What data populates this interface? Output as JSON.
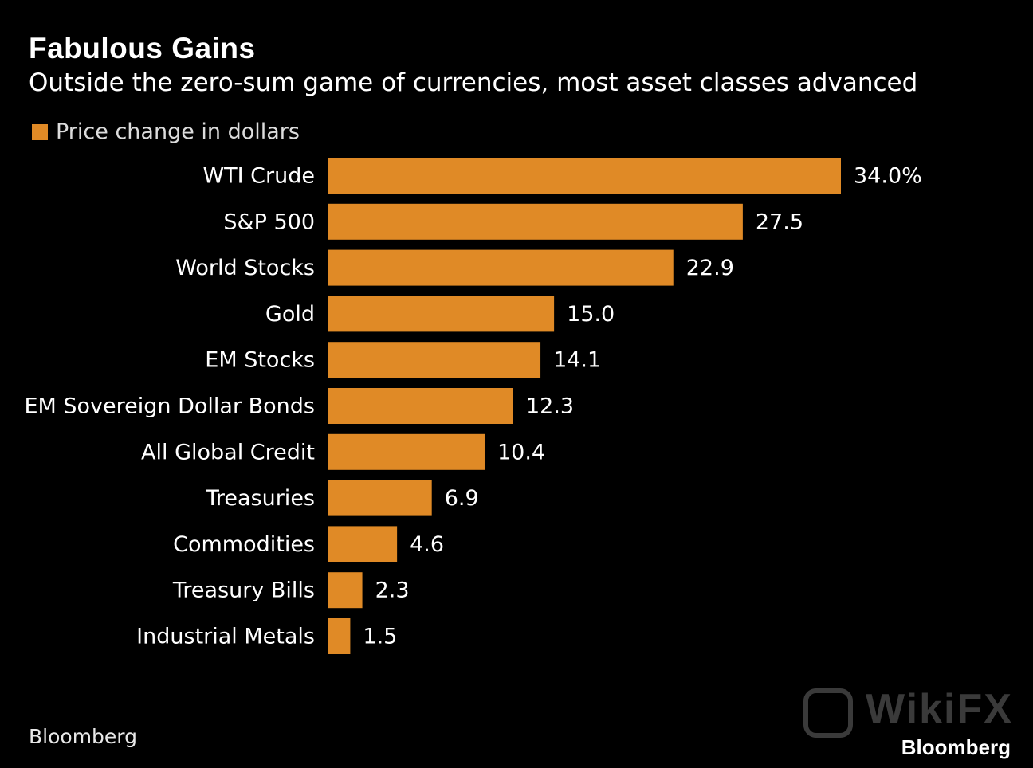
{
  "header": {
    "title": "Fabulous Gains",
    "subtitle": "Outside the zero-sum game of currencies, most asset classes advanced"
  },
  "legend": {
    "label": "Price change in dollars"
  },
  "source": "Bloomberg",
  "watermark": {
    "text": "WikiFX",
    "brand": "Bloomberg"
  },
  "colors": {
    "bar": "#e08a26",
    "background": "#000000"
  },
  "chart_data": {
    "type": "bar",
    "orientation": "horizontal",
    "title": "Fabulous Gains",
    "subtitle": "Outside the zero-sum game of currencies, most asset classes advanced",
    "categories": [
      "WTI Crude",
      "S&P 500",
      "World Stocks",
      "Gold",
      "EM Stocks",
      "EM Sovereign Dollar Bonds",
      "All Global Credit",
      "Treasuries",
      "Commodities",
      "Treasury Bills",
      "Industrial Metals"
    ],
    "series": [
      {
        "name": "Price change in dollars",
        "values": [
          34.0,
          27.5,
          22.9,
          15.0,
          14.1,
          12.3,
          10.4,
          6.9,
          4.6,
          2.3,
          1.5
        ]
      }
    ],
    "value_labels": [
      "34.0%",
      "27.5",
      "22.9",
      "15.0",
      "14.1",
      "12.3",
      "10.4",
      "6.9",
      "4.6",
      "2.3",
      "1.5"
    ],
    "xlim": [
      0,
      34.0
    ],
    "grid": false,
    "legend_position": "top-left"
  }
}
